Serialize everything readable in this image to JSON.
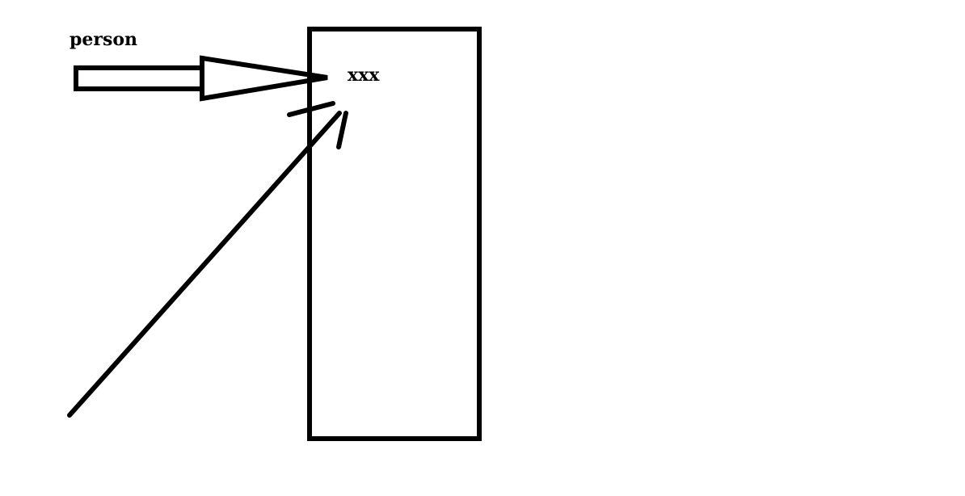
{
  "labels": {
    "person": "person",
    "box_text": "xxx"
  },
  "colors": {
    "ink": "#000000",
    "background": "#ffffff"
  }
}
